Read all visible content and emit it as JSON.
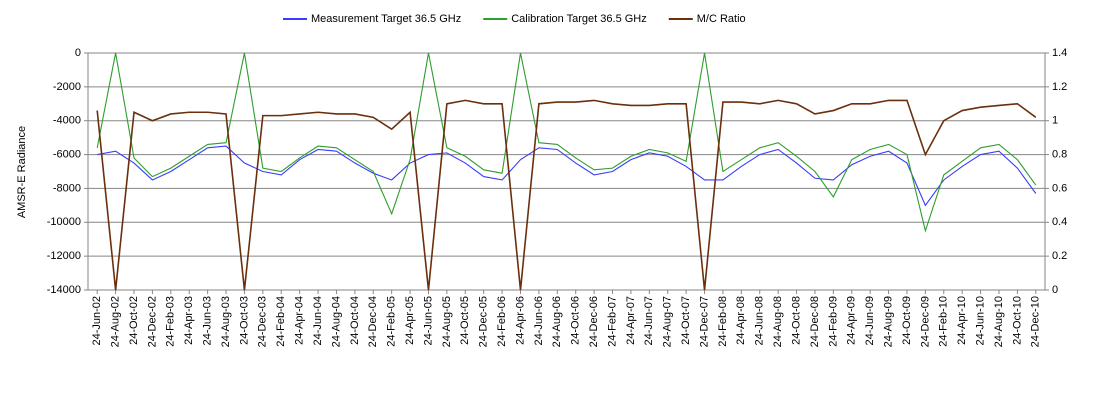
{
  "chart_data": {
    "type": "line",
    "y_label": "AMSR-E Radiance",
    "categories": [
      "24-Jun-02",
      "24-Aug-02",
      "24-Oct-02",
      "24-Dec-02",
      "24-Feb-03",
      "24-Apr-03",
      "24-Jun-03",
      "24-Aug-03",
      "24-Oct-03",
      "24-Dec-03",
      "24-Feb-04",
      "24-Apr-04",
      "24-Jun-04",
      "24-Aug-04",
      "24-Oct-04",
      "24-Dec-04",
      "24-Feb-05",
      "24-Apr-05",
      "24-Jun-05",
      "24-Aug-05",
      "24-Oct-05",
      "24-Dec-05",
      "24-Feb-06",
      "24-Apr-06",
      "24-Jun-06",
      "24-Aug-06",
      "24-Oct-06",
      "24-Dec-06",
      "24-Feb-07",
      "24-Apr-07",
      "24-Jun-07",
      "24-Aug-07",
      "24-Oct-07",
      "24-Dec-07",
      "24-Feb-08",
      "24-Apr-08",
      "24-Jun-08",
      "24-Aug-08",
      "24-Oct-08",
      "24-Dec-08",
      "24-Feb-09",
      "24-Apr-09",
      "24-Jun-09",
      "24-Aug-09",
      "24-Oct-09",
      "24-Dec-09",
      "24-Feb-10",
      "24-Apr-10",
      "24-Jun-10",
      "24-Aug-10",
      "24-Oct-10",
      "24-Dec-10"
    ],
    "series": [
      {
        "name": "Measurement Target 36.5 GHz",
        "color": "#3b3bff",
        "values": [
          -6000,
          -5800,
          -6500,
          -7500,
          -7000,
          -6300,
          -5600,
          -5500,
          -6500,
          -7000,
          -7200,
          -6300,
          -5700,
          -5800,
          -6500,
          -7100,
          -7500,
          -6500,
          -6000,
          -5900,
          -6500,
          -7300,
          -7500,
          -6300,
          -5600,
          -5700,
          -6500,
          -7200,
          -7000,
          -6300,
          -5900,
          -6100,
          -6700,
          -7500,
          -7500,
          -6700,
          -6000,
          -5700,
          -6500,
          -7400,
          -7500,
          -6600,
          -6100,
          -5800,
          -6500,
          -9000,
          -7500,
          -6700,
          -6000,
          -5800,
          -6800,
          -8300
        ]
      },
      {
        "name": "Calibration Target 36.5 GHz",
        "color": "#2e9e2e",
        "values": [
          -5600,
          0,
          -6200,
          -7300,
          -6800,
          -6100,
          -5400,
          -5300,
          0,
          -6800,
          -7000,
          -6200,
          -5500,
          -5600,
          -6300,
          -7000,
          -9500,
          -6300,
          0,
          -5600,
          -6100,
          -6900,
          -7100,
          0,
          -5300,
          -5400,
          -6200,
          -6900,
          -6800,
          -6100,
          -5700,
          -5900,
          -6400,
          0,
          -7000,
          -6300,
          -5600,
          -5300,
          -6100,
          -7000,
          -8500,
          -6300,
          -5700,
          -5400,
          -6000,
          -10500,
          -7200,
          -6400,
          -5600,
          -5400,
          -6300,
          -7800
        ]
      },
      {
        "name": "M/C Ratio",
        "color": "#6b2f0c",
        "axis": "y2",
        "values": [
          1.06,
          0,
          1.05,
          1.0,
          1.04,
          1.05,
          1.05,
          1.04,
          0,
          1.03,
          1.03,
          1.04,
          1.05,
          1.04,
          1.04,
          1.02,
          0.95,
          1.05,
          0,
          1.1,
          1.12,
          1.1,
          1.1,
          0,
          1.1,
          1.11,
          1.11,
          1.12,
          1.1,
          1.09,
          1.09,
          1.1,
          1.1,
          0,
          1.11,
          1.11,
          1.1,
          1.12,
          1.1,
          1.04,
          1.06,
          1.1,
          1.1,
          1.12,
          1.12,
          0.8,
          1.0,
          1.06,
          1.08,
          1.09,
          1.1,
          1.02
        ]
      }
    ],
    "ylim": [
      -14000,
      0
    ],
    "yticks": [
      -14000,
      -12000,
      -10000,
      -8000,
      -6000,
      -4000,
      -2000,
      0
    ],
    "y2lim": [
      0,
      1.4
    ],
    "y2ticks": [
      0,
      0.2,
      0.4,
      0.6,
      0.8,
      1,
      1.2,
      1.4
    ],
    "grid": true,
    "legend": "top"
  }
}
